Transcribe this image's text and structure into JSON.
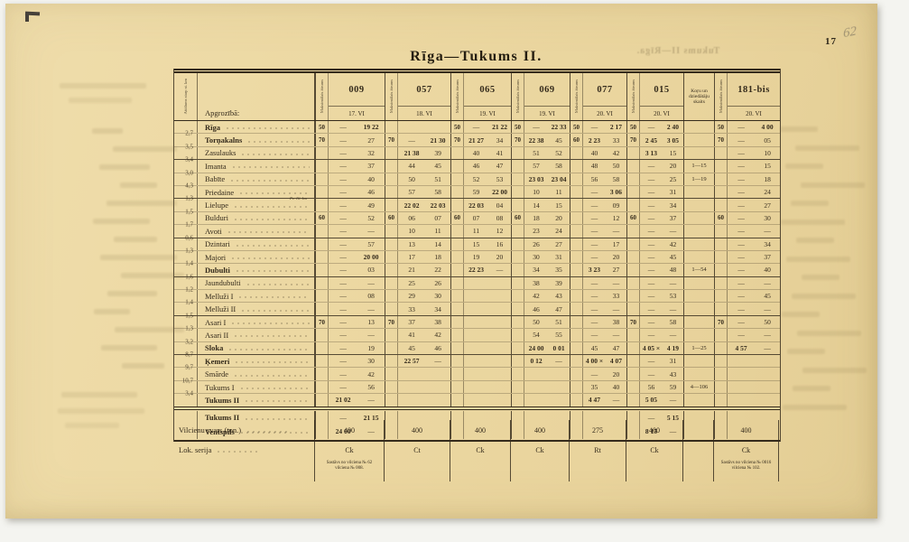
{
  "colors": {
    "paper": "#ecd8a2",
    "ink": "#352b1c",
    "background": "#f4f4f0",
    "pencil": "#696256"
  },
  "page": {
    "number": "17",
    "pencil_note": "62",
    "title": "Rīga—Tukums II.",
    "ghost_title": "Tukums II—Rīga."
  },
  "table": {
    "header": {
      "distance_label": "Attālums starp st. km",
      "station_label": "Apgrozībā:",
      "speed_label": "Maksimālais ātrums",
      "choir_label": "Koŗu un dziedātāju skaits",
      "trains": [
        {
          "no": "009",
          "date": "17. VI"
        },
        {
          "no": "057",
          "date": "18. VI"
        },
        {
          "no": "065",
          "date": "19. VI"
        },
        {
          "no": "069",
          "date": "19. VI"
        },
        {
          "no": "077",
          "date": "20. VI"
        },
        {
          "no": "015",
          "date": "20. VI"
        },
        {
          "no": "181-bis",
          "date": "20. VI"
        }
      ]
    },
    "rows": [
      {
        "dist": "",
        "name": "Rīga",
        "bold": true,
        "sep": false,
        "note": "",
        "choir": "",
        "cells": [
          [
            "50",
            "—",
            "19 22"
          ],
          [
            "",
            "",
            ""
          ],
          [
            "50",
            "—",
            "21 22"
          ],
          [
            "50",
            "—",
            "22 33"
          ],
          [
            "50",
            "—",
            "2 17"
          ],
          [
            "50",
            "—",
            "2 40"
          ],
          [
            "50",
            "—",
            "4 00"
          ]
        ]
      },
      {
        "dist": "2,7",
        "name": "Torņakalns",
        "bold": true,
        "sep": false,
        "note": "",
        "choir": "",
        "cells": [
          [
            "70",
            "—",
            "27"
          ],
          [
            "70",
            "—",
            "21 30"
          ],
          [
            "70",
            "21 27",
            "34"
          ],
          [
            "70",
            "22 38",
            "45"
          ],
          [
            "60",
            "2 23",
            "33"
          ],
          [
            "70",
            "2 45",
            "3 05"
          ],
          [
            "70",
            "—",
            "05"
          ]
        ]
      },
      {
        "dist": "3,5",
        "name": "Zasulauks",
        "bold": false,
        "sep": true,
        "note": "",
        "choir": "",
        "cells": [
          [
            "",
            "—",
            "32"
          ],
          [
            "",
            "21 38",
            "39"
          ],
          [
            "",
            "40",
            "41"
          ],
          [
            "",
            "51",
            "52"
          ],
          [
            "",
            "40",
            "42"
          ],
          [
            "",
            "3 13",
            "15"
          ],
          [
            "",
            "—",
            "10"
          ]
        ]
      },
      {
        "dist": "3,4",
        "name": "Imanta",
        "bold": false,
        "sep": false,
        "note": "",
        "choir": "1—15",
        "cells": [
          [
            "",
            "—",
            "37"
          ],
          [
            "",
            "44",
            "45"
          ],
          [
            "",
            "46",
            "47"
          ],
          [
            "",
            "57",
            "58"
          ],
          [
            "",
            "48",
            "50"
          ],
          [
            "",
            "—",
            "20"
          ],
          [
            "",
            "—",
            "15"
          ]
        ]
      },
      {
        "dist": "3,0",
        "name": "Babīte",
        "bold": false,
        "sep": false,
        "note": "",
        "choir": "1—19",
        "cells": [
          [
            "",
            "—",
            "40"
          ],
          [
            "",
            "50",
            "51"
          ],
          [
            "",
            "52",
            "53"
          ],
          [
            "",
            "23 03",
            "23 04"
          ],
          [
            "",
            "56",
            "58"
          ],
          [
            "",
            "—",
            "25"
          ],
          [
            "",
            "—",
            "18"
          ]
        ]
      },
      {
        "dist": "4,3",
        "name": "Priedaine",
        "bold": false,
        "sep": true,
        "note": "Pv. 16. km",
        "choir": "",
        "cells": [
          [
            "",
            "—",
            "46"
          ],
          [
            "",
            "57",
            "58"
          ],
          [
            "",
            "59",
            "22 00"
          ],
          [
            "",
            "10",
            "11"
          ],
          [
            "",
            "—",
            "3 06"
          ],
          [
            "",
            "—",
            "31"
          ],
          [
            "",
            "—",
            "24"
          ]
        ]
      },
      {
        "dist": "1,3",
        "name": "Lielupe",
        "bold": false,
        "sep": false,
        "note": "",
        "choir": "",
        "cells": [
          [
            "",
            "—",
            "49"
          ],
          [
            "",
            "22 02",
            "22 03"
          ],
          [
            "",
            "22 03",
            "04"
          ],
          [
            "",
            "14",
            "15"
          ],
          [
            "",
            "—",
            "09"
          ],
          [
            "",
            "—",
            "34"
          ],
          [
            "",
            "—",
            "27"
          ]
        ]
      },
      {
        "dist": "1,5",
        "name": "Bulduri",
        "bold": false,
        "sep": false,
        "note": "",
        "choir": "",
        "cells": [
          [
            "60",
            "—",
            "52"
          ],
          [
            "60",
            "06",
            "07"
          ],
          [
            "60",
            "07",
            "08"
          ],
          [
            "60",
            "18",
            "20"
          ],
          [
            "",
            "—",
            "12"
          ],
          [
            "60",
            "—",
            "37"
          ],
          [
            "60",
            "—",
            "30"
          ]
        ]
      },
      {
        "dist": "1,7",
        "name": "Avoti",
        "bold": false,
        "sep": true,
        "note": "",
        "choir": "",
        "cells": [
          [
            "",
            "—",
            "—"
          ],
          [
            "",
            "10",
            "11"
          ],
          [
            "",
            "11",
            "12"
          ],
          [
            "",
            "23",
            "24"
          ],
          [
            "",
            "—",
            "—"
          ],
          [
            "",
            "—",
            "—"
          ],
          [
            "",
            "—",
            "—"
          ]
        ]
      },
      {
        "dist": "0,6",
        "name": "Dzintari",
        "bold": false,
        "sep": false,
        "note": "",
        "choir": "",
        "cells": [
          [
            "",
            "—",
            "57"
          ],
          [
            "",
            "13",
            "14"
          ],
          [
            "",
            "15",
            "16"
          ],
          [
            "",
            "26",
            "27"
          ],
          [
            "",
            "—",
            "17"
          ],
          [
            "",
            "—",
            "42"
          ],
          [
            "",
            "—",
            "34"
          ]
        ]
      },
      {
        "dist": "1,3",
        "name": "Majori",
        "bold": false,
        "sep": false,
        "note": "",
        "choir": "",
        "cells": [
          [
            "",
            "—",
            "20 00"
          ],
          [
            "",
            "17",
            "18"
          ],
          [
            "",
            "19",
            "20"
          ],
          [
            "",
            "30",
            "31"
          ],
          [
            "",
            "—",
            "20"
          ],
          [
            "",
            "—",
            "45"
          ],
          [
            "",
            "—",
            "37"
          ]
        ]
      },
      {
        "dist": "1,4",
        "name": "Dubulti",
        "bold": true,
        "sep": true,
        "note": "",
        "choir": "1—54",
        "cells": [
          [
            "",
            "—",
            "03"
          ],
          [
            "",
            "21",
            "22"
          ],
          [
            "",
            "22 23",
            "—"
          ],
          [
            "",
            "34",
            "35"
          ],
          [
            "",
            "3 23",
            "27"
          ],
          [
            "",
            "—",
            "48"
          ],
          [
            "",
            "—",
            "40"
          ]
        ]
      },
      {
        "dist": "1,6",
        "name": "Jaundubulti",
        "bold": false,
        "sep": false,
        "note": "",
        "choir": "",
        "cells": [
          [
            "",
            "—",
            "—"
          ],
          [
            "",
            "25",
            "26"
          ],
          [
            "",
            "",
            ""
          ],
          [
            "",
            "38",
            "39"
          ],
          [
            "",
            "—",
            "—"
          ],
          [
            "",
            "—",
            "—"
          ],
          [
            "",
            "—",
            "—"
          ]
        ]
      },
      {
        "dist": "1,2",
        "name": "Melluži I",
        "bold": false,
        "sep": false,
        "note": "",
        "choir": "",
        "cells": [
          [
            "",
            "—",
            "08"
          ],
          [
            "",
            "29",
            "30"
          ],
          [
            "",
            "",
            ""
          ],
          [
            "",
            "42",
            "43"
          ],
          [
            "",
            "—",
            "33"
          ],
          [
            "",
            "—",
            "53"
          ],
          [
            "",
            "—",
            "45"
          ]
        ]
      },
      {
        "dist": "1,4",
        "name": "Melluži II",
        "bold": false,
        "sep": true,
        "note": "",
        "choir": "",
        "cells": [
          [
            "",
            "—",
            "—"
          ],
          [
            "",
            "33",
            "34"
          ],
          [
            "",
            "",
            ""
          ],
          [
            "",
            "46",
            "47"
          ],
          [
            "",
            "—",
            "—"
          ],
          [
            "",
            "—",
            "—"
          ],
          [
            "",
            "—",
            "—"
          ]
        ]
      },
      {
        "dist": "1,5",
        "name": "Asari I",
        "bold": false,
        "sep": false,
        "note": "",
        "choir": "",
        "cells": [
          [
            "70",
            "—",
            "13"
          ],
          [
            "70",
            "37",
            "38"
          ],
          [
            "",
            "",
            ""
          ],
          [
            "",
            "50",
            "51"
          ],
          [
            "",
            "—",
            "38"
          ],
          [
            "70",
            "—",
            "58"
          ],
          [
            "70",
            "—",
            "50"
          ]
        ]
      },
      {
        "dist": "1,3",
        "name": "Asari II",
        "bold": false,
        "sep": false,
        "note": "",
        "choir": "",
        "cells": [
          [
            "",
            "—",
            "—"
          ],
          [
            "",
            "41",
            "42"
          ],
          [
            "",
            "",
            ""
          ],
          [
            "",
            "54",
            "55"
          ],
          [
            "",
            "—",
            "—"
          ],
          [
            "",
            "—",
            "—"
          ],
          [
            "",
            "—",
            "—"
          ]
        ]
      },
      {
        "dist": "3,2",
        "name": "Sloka",
        "bold": true,
        "sep": true,
        "note": "",
        "choir": "1—25",
        "cells": [
          [
            "",
            "—",
            "19"
          ],
          [
            "",
            "45",
            "46"
          ],
          [
            "",
            "",
            ""
          ],
          [
            "",
            "24 00",
            "0 01"
          ],
          [
            "",
            "45",
            "47"
          ],
          [
            "",
            "4 05 ×",
            "4 19"
          ],
          [
            "",
            "4 57",
            "—"
          ]
        ]
      },
      {
        "dist": "8,7",
        "name": "Ķemeri",
        "bold": true,
        "sep": false,
        "note": "",
        "choir": "",
        "cells": [
          [
            "",
            "—",
            "30"
          ],
          [
            "",
            "22 57",
            "—"
          ],
          [
            "",
            "",
            ""
          ],
          [
            "",
            "0 12",
            "—"
          ],
          [
            "",
            "4 00 ×",
            "4 07"
          ],
          [
            "",
            "—",
            "31"
          ],
          [
            "",
            "",
            ""
          ]
        ]
      },
      {
        "dist": "9,7",
        "name": "Smārde",
        "bold": false,
        "sep": false,
        "note": "",
        "choir": "",
        "cells": [
          [
            "",
            "—",
            "42"
          ],
          [
            "",
            "",
            ""
          ],
          [
            "",
            "",
            ""
          ],
          [
            "",
            "",
            ""
          ],
          [
            "",
            "—",
            "20"
          ],
          [
            "",
            "—",
            "43"
          ],
          [
            "",
            "",
            ""
          ]
        ]
      },
      {
        "dist": "10,7",
        "name": "Tukums I",
        "bold": false,
        "sep": false,
        "note": "",
        "choir": "4—106",
        "cells": [
          [
            "",
            "—",
            "56"
          ],
          [
            "",
            "",
            ""
          ],
          [
            "",
            "",
            ""
          ],
          [
            "",
            "",
            ""
          ],
          [
            "",
            "35",
            "40"
          ],
          [
            "",
            "56",
            "59"
          ],
          [
            "",
            "",
            ""
          ]
        ]
      },
      {
        "dist": "3,4",
        "name": "Tukums II",
        "bold": true,
        "sep": false,
        "note": "",
        "choir": "",
        "cells": [
          [
            "",
            "21 02",
            "—"
          ],
          [
            "",
            "",
            ""
          ],
          [
            "",
            "",
            ""
          ],
          [
            "",
            "",
            ""
          ],
          [
            "",
            "4 47",
            "—"
          ],
          [
            "",
            "5 05",
            "—"
          ],
          [
            "",
            "",
            ""
          ]
        ]
      }
    ],
    "section2": {
      "rows": [
        {
          "dist": "",
          "name": "Tukums II",
          "bold": true,
          "sep": false,
          "note": "",
          "choir": "",
          "cells": [
            [
              "",
              "—",
              "21 15"
            ],
            [
              "",
              "",
              ""
            ],
            [
              "",
              "",
              ""
            ],
            [
              "",
              "",
              ""
            ],
            [
              "",
              "",
              ""
            ],
            [
              "",
              "—",
              "5 15"
            ],
            [
              "",
              "",
              ""
            ]
          ]
        },
        {
          "dist": "",
          "name": "Ventspils",
          "bold": true,
          "sep": false,
          "note": "",
          "choir": "",
          "cells": [
            [
              "",
              "24 00",
              "—"
            ],
            [
              "",
              "",
              ""
            ],
            [
              "",
              "",
              ""
            ],
            [
              "",
              "",
              ""
            ],
            [
              "",
              "",
              ""
            ],
            [
              "",
              "8 15",
              "—"
            ],
            [
              "",
              "",
              ""
            ]
          ]
        }
      ]
    },
    "footer": {
      "weight_label": "Vilcienu svars (ton.)",
      "weights": [
        "400",
        "400",
        "400",
        "400",
        "275",
        "400",
        "400"
      ],
      "lok_label": "Lok. serija",
      "loks": [
        "Ck",
        "Ct",
        "Ck",
        "Ck",
        "Rt",
        "Ck",
        "Ck"
      ],
      "notes": {
        "train_009": "Sastāvs no vilciena № 62\nvilciena № 008.",
        "train_181": "Sastāvs no vilciena № 0016\nvilciena № 102."
      }
    }
  }
}
